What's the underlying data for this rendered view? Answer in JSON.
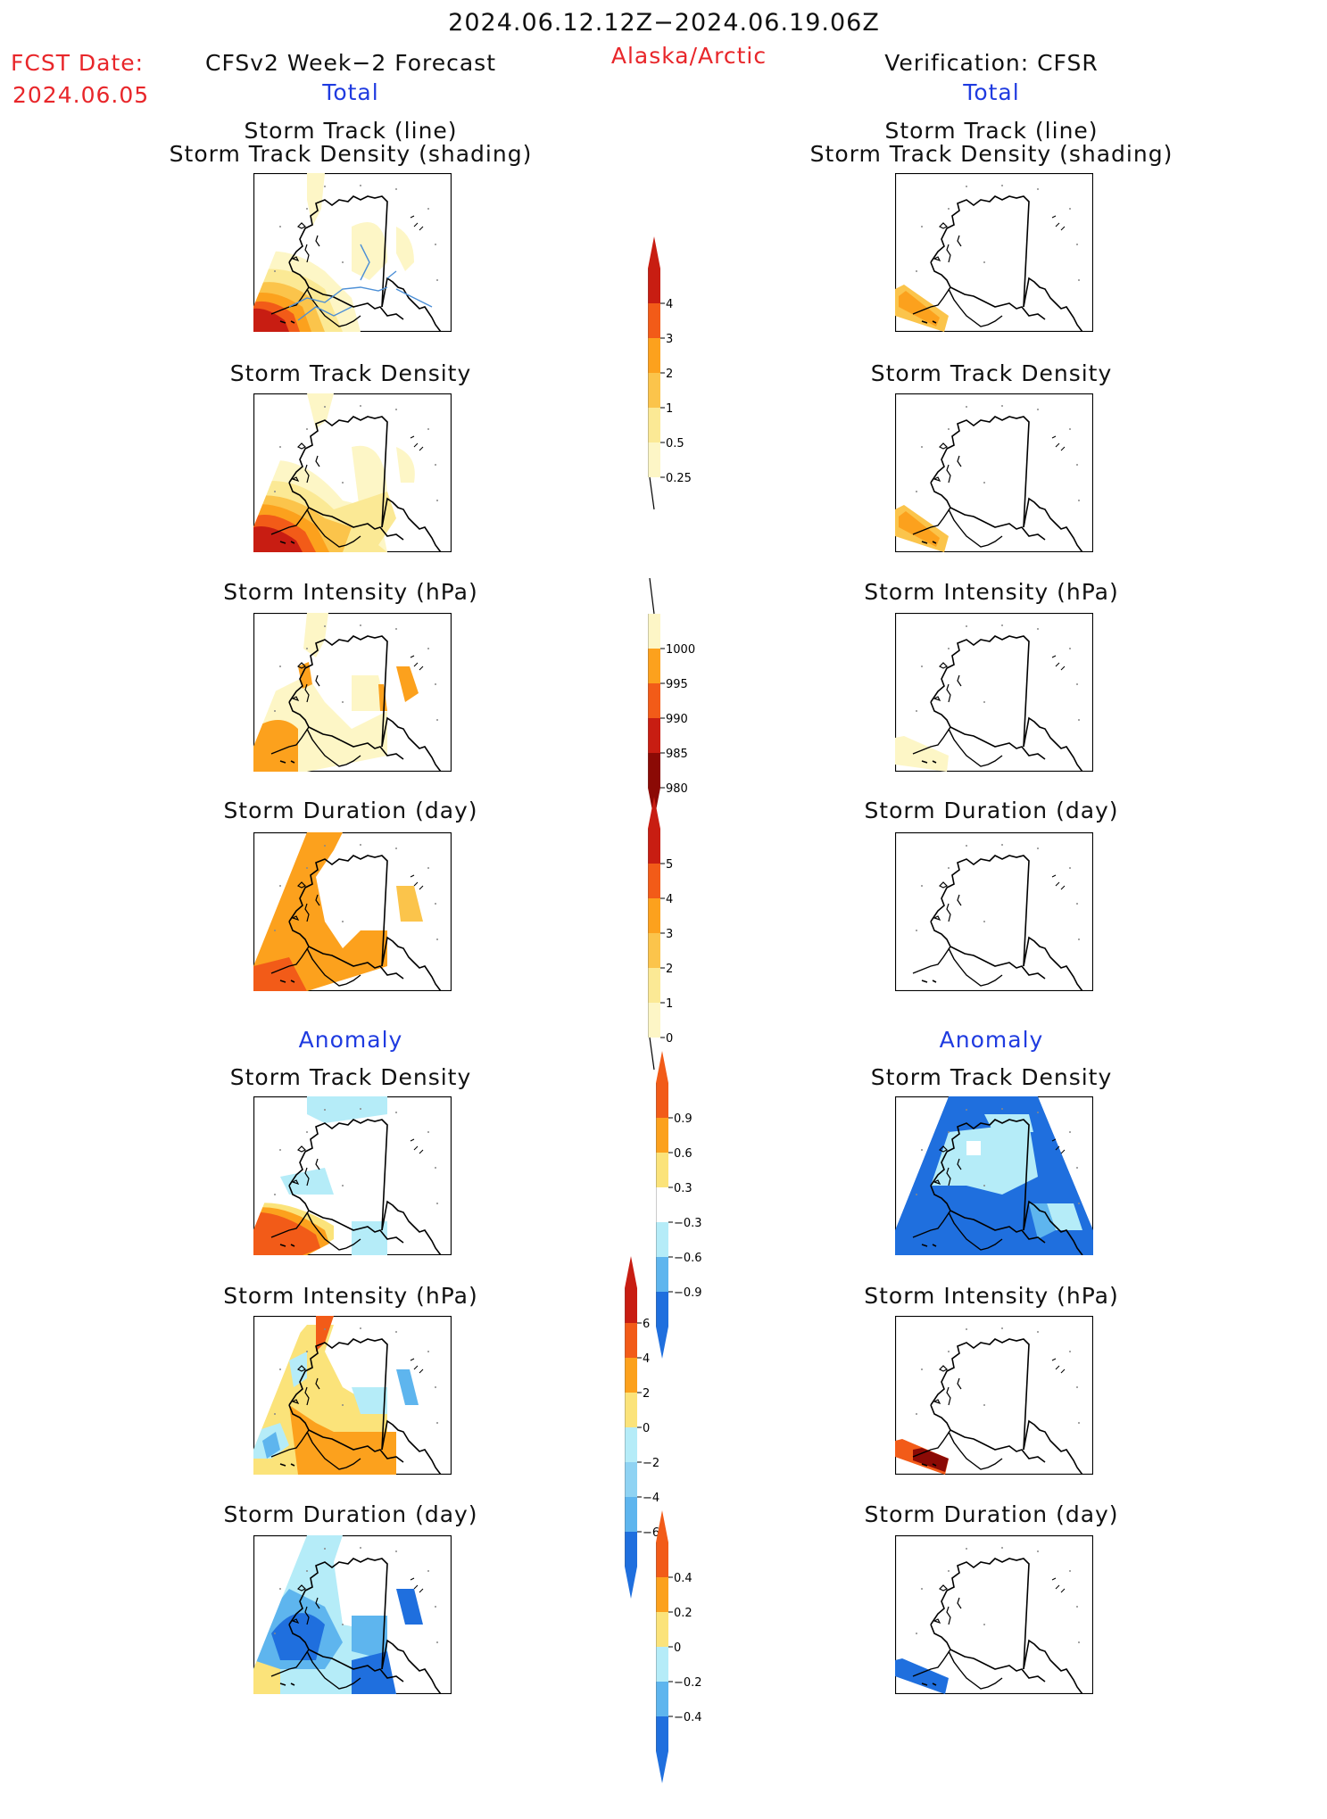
{
  "header": {
    "date_range": "2024.06.12.12Z−2024.06.19.06Z",
    "fcst_label": "FCST Date:",
    "fcst_date": "2024.06.05",
    "model_title": "CFSv2 Week−2 Forecast",
    "region": "Alaska/Arctic",
    "verification_title": "Verification: CFSR",
    "total_label": "Total",
    "anomaly_label": "Anomaly"
  },
  "panels": {
    "track_title_1": "Storm Track (line)",
    "track_title_2": "Storm Track Density (shading)",
    "density": "Storm Track Density",
    "intensity": "Storm Intensity (hPa)",
    "duration": "Storm Duration (day)"
  },
  "colorbars": [
    {
      "id": "density",
      "labels": [
        "4",
        "3",
        "2",
        "1",
        "0.5",
        "0.25"
      ],
      "colors": [
        "#c81d12",
        "#f25b18",
        "#fca11d",
        "#fbc44b",
        "#fbe995",
        "#fdf6c6"
      ]
    },
    {
      "id": "intensity",
      "labels": [
        "1000",
        "995",
        "990",
        "985",
        "980"
      ],
      "colors": [
        "#fdf6c6",
        "#fca11d",
        "#f25b18",
        "#c81d12",
        "#8b0a05"
      ]
    },
    {
      "id": "duration",
      "labels": [
        "5",
        "4",
        "3",
        "2",
        "1",
        "0"
      ],
      "colors": [
        "#c81d12",
        "#f25b18",
        "#fca11d",
        "#fbc44b",
        "#fbe995",
        "#fdf6c6"
      ]
    },
    {
      "id": "anom_density",
      "labels": [
        "0.9",
        "0.6",
        "0.3",
        "−0.3",
        "−0.6",
        "−0.9"
      ],
      "colors": [
        "#f25b18",
        "#fca11d",
        "#fbe37a",
        "#ffffff",
        "#b5ecf8",
        "#5eb5ee",
        "#1f6fde"
      ]
    },
    {
      "id": "anom_intensity",
      "labels": [
        "6",
        "4",
        "2",
        "0",
        "−2",
        "−4",
        "−6"
      ],
      "colors": [
        "#c81d12",
        "#f25b18",
        "#fca11d",
        "#fbe37a",
        "#b5ecf8",
        "#8fd3f3",
        "#5eb5ee",
        "#1f6fde"
      ]
    },
    {
      "id": "anom_duration",
      "labels": [
        "0.4",
        "0.2",
        "0",
        "−0.2",
        "−0.4"
      ],
      "colors": [
        "#f25b18",
        "#fca11d",
        "#fbe37a",
        "#b5ecf8",
        "#5eb5ee",
        "#1f6fde"
      ]
    }
  ],
  "colors": {
    "red_text": "#e8262a",
    "blue_text": "#1f3be0",
    "dark_red": "#8b0a05",
    "red": "#c81d12",
    "orange_red": "#f25b18",
    "orange": "#fca11d",
    "light_orange": "#fbc44b",
    "pale_yellow": "#fdf6c6",
    "light_blue": "#b5ecf8",
    "mid_blue": "#5eb5ee",
    "deep_blue": "#1f6fde"
  }
}
